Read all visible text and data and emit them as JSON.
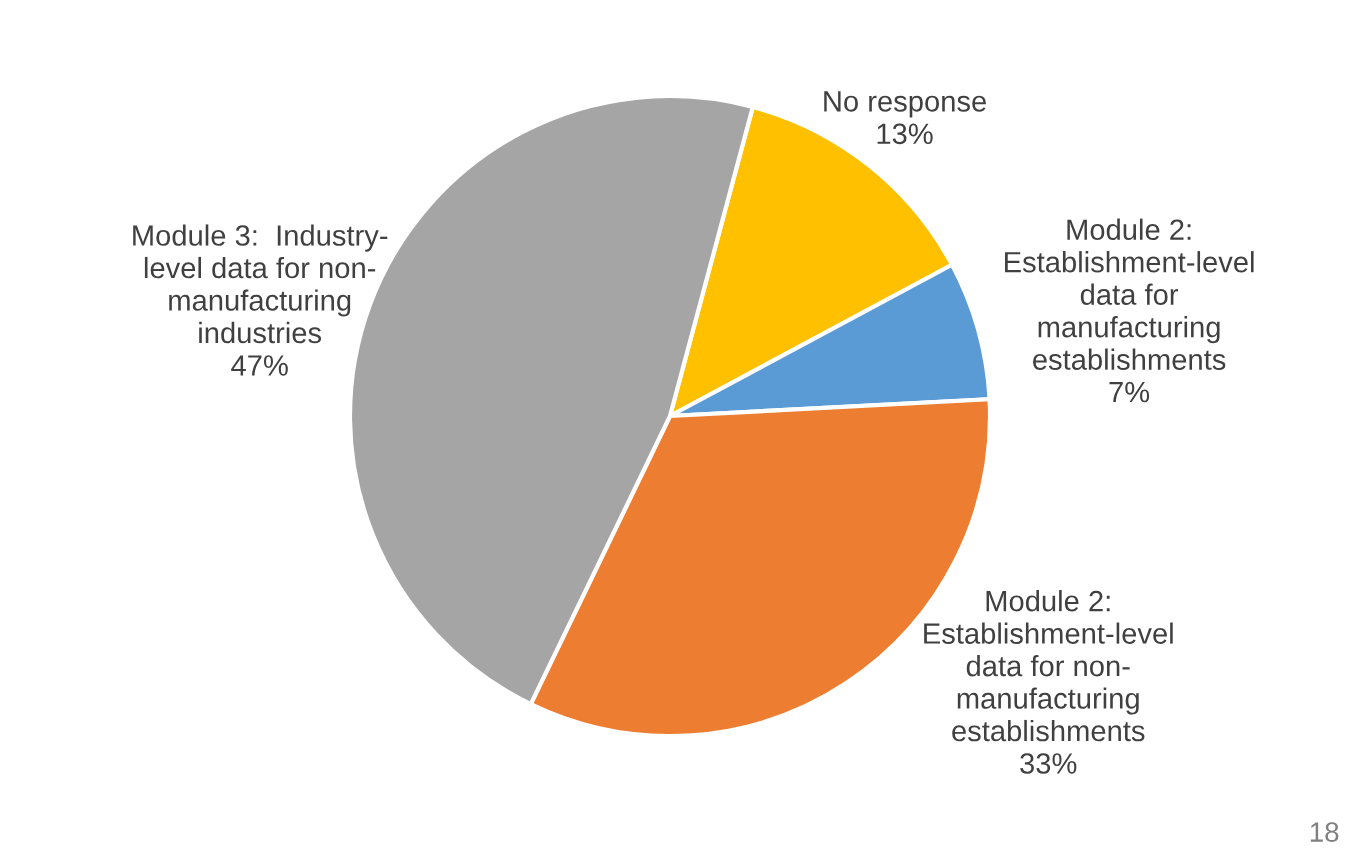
{
  "chart_data": {
    "type": "pie",
    "categories": [
      "No response",
      "Module 2:\nEstablishment-level\ndata for\nmanufacturing\nestablishments",
      "Module 2:\nEstablishment-level\ndata for non-\nmanufacturing\nestablishments",
      "Module 3:  Industry-\nlevel data for non-\nmanufacturing\nindustries"
    ],
    "values": [
      13,
      7,
      33,
      47
    ],
    "colors": [
      "#ffc000",
      "#5b9bd5",
      "#ed7d31",
      "#a5a5a5"
    ],
    "value_labels": [
      "13%",
      "7%",
      "33%",
      "47%"
    ],
    "annotations": [
      "18"
    ]
  }
}
